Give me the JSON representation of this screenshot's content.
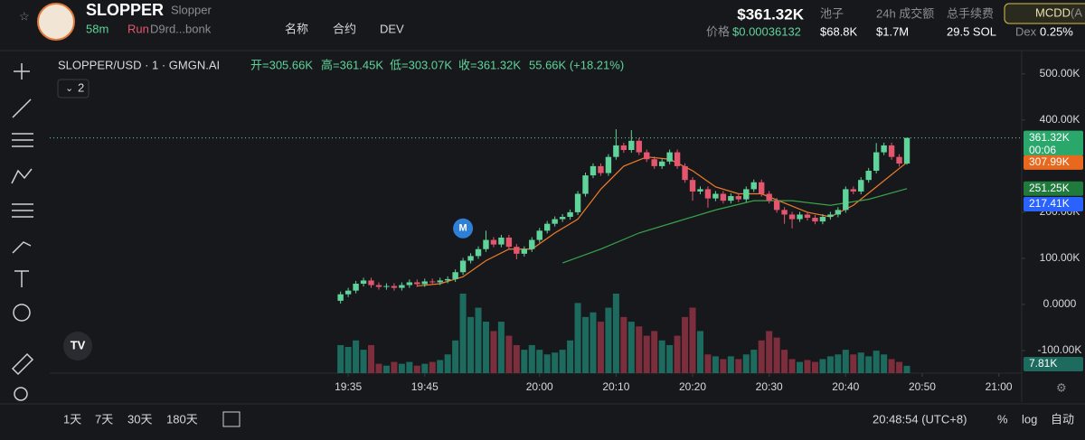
{
  "header": {
    "symbol": "SLOPPER",
    "name": "Slopper",
    "age": "58m",
    "status": "Run",
    "address": "D9rd...bonk",
    "links": [
      "名称",
      "合约",
      "DEV"
    ],
    "market_cap": "$361.32K",
    "price_label": "价格",
    "price": "$0.00036132",
    "stats": [
      {
        "label": "池子",
        "value": "$68.8K"
      },
      {
        "label": "24h 成交额",
        "value": "$1.7M"
      },
      {
        "label": "总手续费",
        "value": "29.5 SOL"
      }
    ],
    "badge": "MCDD",
    "badge_suffix": "(A",
    "dex_label": "Dex",
    "dex_value": "0.25%"
  },
  "chart_data": {
    "type": "candlestick",
    "title": "SLOPPER/USD · 1 · GMGN.AI",
    "legend": [
      "开=305.66K",
      "高=361.45K",
      "低=303.07K",
      "收=361.32K",
      "55.66K (+18.21%)"
    ],
    "indicator_count": "2",
    "up_color": "#5fd39a",
    "down_color": "#e4566e",
    "volume_up_color": "#1d6b5e",
    "volume_down_color": "#7d2e3d",
    "x": [
      "19:34",
      "19:35",
      "19:36",
      "19:37",
      "19:38",
      "19:39",
      "19:40",
      "19:41",
      "19:42",
      "19:43",
      "19:44",
      "19:45",
      "19:46",
      "19:47",
      "19:48",
      "19:49",
      "19:50",
      "19:51",
      "19:52",
      "19:53",
      "19:54",
      "19:55",
      "19:56",
      "19:57",
      "19:58",
      "19:59",
      "20:00",
      "20:01",
      "20:02",
      "20:03",
      "20:04",
      "20:05",
      "20:06",
      "20:07",
      "20:08",
      "20:09",
      "20:10",
      "20:11",
      "20:12",
      "20:13",
      "20:14",
      "20:15",
      "20:16",
      "20:17",
      "20:18",
      "20:19",
      "20:20",
      "20:21",
      "20:22",
      "20:23",
      "20:24",
      "20:25",
      "20:26",
      "20:27",
      "20:28",
      "20:29",
      "20:30",
      "20:31",
      "20:32",
      "20:33",
      "20:34",
      "20:35",
      "20:36",
      "20:37",
      "20:38",
      "20:39",
      "20:40",
      "20:41",
      "20:42",
      "20:43",
      "20:44",
      "20:45",
      "20:46",
      "20:47",
      "20:48"
    ],
    "open": [
      8000,
      22000,
      30000,
      45000,
      52000,
      42000,
      38000,
      40000,
      36000,
      42000,
      48000,
      44000,
      50000,
      48000,
      52000,
      55000,
      70000,
      95000,
      105000,
      120000,
      140000,
      130000,
      145000,
      125000,
      110000,
      120000,
      140000,
      160000,
      175000,
      185000,
      190000,
      200000,
      240000,
      280000,
      300000,
      285000,
      320000,
      345000,
      335000,
      355000,
      330000,
      315000,
      300000,
      310000,
      330000,
      300000,
      270000,
      245000,
      250000,
      230000,
      240000,
      225000,
      235000,
      228000,
      250000,
      265000,
      240000,
      225000,
      205000,
      195000,
      185000,
      195000,
      188000,
      180000,
      190000,
      195000,
      205000,
      250000,
      245000,
      270000,
      290000,
      330000,
      345000,
      320000,
      305660
    ],
    "high": [
      28000,
      36000,
      51000,
      58000,
      58000,
      48000,
      46000,
      46000,
      48000,
      54000,
      54000,
      56000,
      56000,
      58000,
      61000,
      76000,
      101000,
      111000,
      126000,
      160000,
      146000,
      151000,
      151000,
      131000,
      126000,
      146000,
      166000,
      181000,
      191000,
      196000,
      206000,
      246000,
      286000,
      306000,
      306000,
      326000,
      380000,
      351000,
      378000,
      361000,
      336000,
      321000,
      316000,
      336000,
      336000,
      306000,
      276000,
      256000,
      256000,
      246000,
      246000,
      241000,
      241000,
      256000,
      271000,
      271000,
      246000,
      231000,
      211000,
      201000,
      201000,
      201000,
      194000,
      196000,
      201000,
      211000,
      256000,
      256000,
      276000,
      296000,
      350000,
      351000,
      351000,
      326000,
      361450
    ],
    "low": [
      2000,
      16000,
      24000,
      39000,
      36000,
      32000,
      32000,
      30000,
      30000,
      36000,
      38000,
      38000,
      42000,
      42000,
      46000,
      49000,
      64000,
      89000,
      99000,
      114000,
      124000,
      124000,
      119000,
      98000,
      104000,
      114000,
      134000,
      154000,
      169000,
      179000,
      184000,
      194000,
      234000,
      274000,
      279000,
      279000,
      314000,
      329000,
      329000,
      324000,
      309000,
      294000,
      294000,
      304000,
      294000,
      264000,
      225000,
      239000,
      210000,
      224000,
      219000,
      219000,
      222000,
      222000,
      244000,
      234000,
      219000,
      199000,
      175000,
      165000,
      179000,
      182000,
      174000,
      174000,
      184000,
      189000,
      199000,
      239000,
      239000,
      264000,
      284000,
      324000,
      314000,
      299000,
      303070
    ],
    "close": [
      22000,
      30000,
      45000,
      52000,
      42000,
      38000,
      40000,
      36000,
      42000,
      48000,
      44000,
      50000,
      48000,
      52000,
      55000,
      70000,
      95000,
      105000,
      120000,
      140000,
      130000,
      145000,
      125000,
      110000,
      120000,
      140000,
      160000,
      175000,
      185000,
      190000,
      200000,
      240000,
      280000,
      300000,
      285000,
      320000,
      345000,
      335000,
      355000,
      330000,
      315000,
      300000,
      310000,
      330000,
      300000,
      270000,
      245000,
      250000,
      230000,
      240000,
      225000,
      235000,
      228000,
      250000,
      265000,
      240000,
      225000,
      205000,
      195000,
      185000,
      195000,
      188000,
      180000,
      190000,
      195000,
      205000,
      250000,
      245000,
      270000,
      290000,
      330000,
      345000,
      320000,
      305660,
      361320
    ],
    "volume": [
      30000,
      28000,
      35000,
      25000,
      30000,
      10000,
      8000,
      12000,
      10000,
      12000,
      8000,
      10000,
      12000,
      14000,
      20000,
      35000,
      85000,
      60000,
      70000,
      55000,
      45000,
      55000,
      40000,
      30000,
      25000,
      30000,
      25000,
      20000,
      22000,
      25000,
      35000,
      75000,
      60000,
      65000,
      55000,
      70000,
      85000,
      60000,
      55000,
      50000,
      40000,
      45000,
      35000,
      30000,
      40000,
      60000,
      70000,
      45000,
      20000,
      18000,
      15000,
      18000,
      15000,
      20000,
      25000,
      35000,
      45000,
      38000,
      25000,
      15000,
      12000,
      14000,
      12000,
      15000,
      18000,
      20000,
      25000,
      20000,
      22000,
      18000,
      24000,
      20000,
      15000,
      12000,
      7810
    ],
    "volume_label": "7.81K",
    "close_label": "361.32K",
    "countdown": "00:06",
    "series": [
      {
        "color": "#f07c2a",
        "x": [
          "19:44",
          "19:47",
          "19:50",
          "19:53",
          "19:56",
          "19:59",
          "20:02",
          "20:05",
          "20:08",
          "20:11",
          "20:14",
          "20:17",
          "20:20",
          "20:23",
          "20:26",
          "20:29",
          "20:32",
          "20:35",
          "20:38",
          "20:41",
          "20:44",
          "20:47",
          "20:48"
        ],
        "values": [
          40000,
          45000,
          60000,
          95000,
          120000,
          120000,
          155000,
          185000,
          250000,
          300000,
          320000,
          315000,
          290000,
          255000,
          240000,
          240000,
          220000,
          200000,
          190000,
          215000,
          255000,
          295000,
          307990
        ],
        "value_label": "307.99K"
      },
      {
        "color": "#3aa34a",
        "x": [
          "20:03",
          "20:08",
          "20:13",
          "20:18",
          "20:23",
          "20:28",
          "20:33",
          "20:38",
          "20:43",
          "20:48"
        ],
        "values": [
          90000,
          120000,
          155000,
          180000,
          205000,
          225000,
          225000,
          215000,
          228000,
          251250
        ],
        "value_label": "251.25K"
      }
    ],
    "price_marker": {
      "value": 217410,
      "label": "217.41K"
    },
    "marker": {
      "x": "19:50",
      "value": 165000,
      "label": "M"
    },
    "xlim": [
      "18:56",
      "21:03"
    ],
    "xticks": [
      "19:35",
      "19:45",
      "20:00",
      "20:10",
      "20:20",
      "20:30",
      "20:40",
      "20:50",
      "21:00"
    ],
    "ylim": [
      -149000,
      533000
    ],
    "yticks": [
      {
        "value": -100000,
        "label": "-100.00K"
      },
      {
        "value": 0,
        "label": "0.0000"
      },
      {
        "value": 100000,
        "label": "100.00K"
      },
      {
        "value": 200000,
        "label": "200.00K"
      },
      {
        "value": 400000,
        "label": "400.00K"
      },
      {
        "value": 500000,
        "label": "500.00K"
      }
    ]
  },
  "footer": {
    "ranges": [
      "1天",
      "7天",
      "30天",
      "180天"
    ],
    "clock": "20:48:54 (UTC+8)",
    "options": [
      "%",
      "log",
      "自动"
    ]
  }
}
